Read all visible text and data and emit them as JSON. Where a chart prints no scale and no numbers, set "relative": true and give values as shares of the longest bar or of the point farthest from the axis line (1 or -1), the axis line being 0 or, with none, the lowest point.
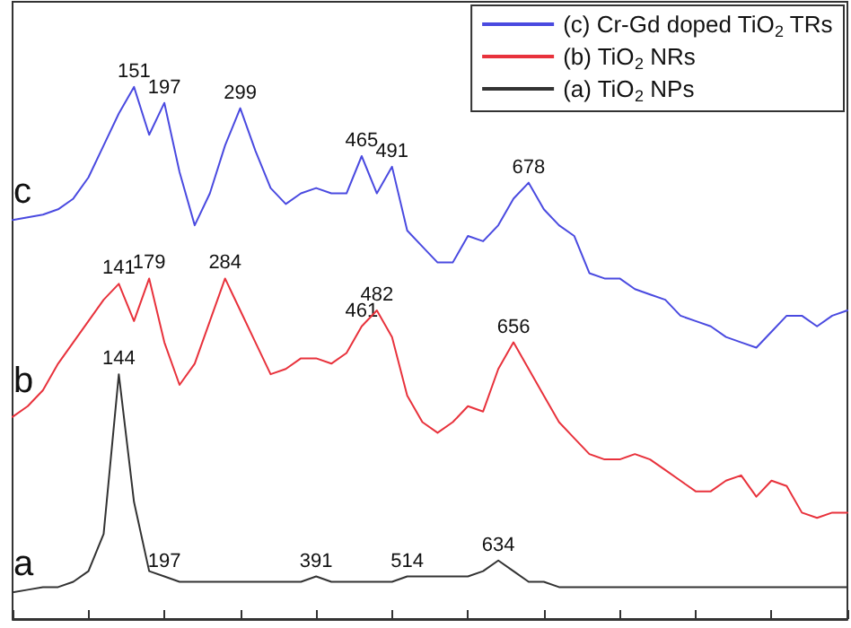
{
  "chart_data": {
    "type": "line",
    "relative": true,
    "tick_labels": false,
    "legend": "top right",
    "grid": false,
    "marker": "none",
    "line_style": "solid",
    "categories": [
      null,
      null,
      null,
      null,
      null,
      null,
      null,
      null,
      null,
      null,
      null,
      null,
      null,
      null,
      null,
      null,
      null,
      null,
      null,
      null,
      null,
      null,
      null,
      null,
      null,
      null,
      null,
      null,
      null,
      null,
      null,
      null,
      null,
      null,
      null,
      null,
      null,
      null,
      null,
      null,
      null,
      null,
      null,
      null,
      null,
      null,
      null,
      null,
      null,
      null,
      null,
      null,
      null,
      null,
      null,
      null
    ],
    "series": [
      {
        "name": "(c) Cr-Gd doped TiO$_{2}$ TRs",
        "color": "#4a4ae0",
        "values": [
          0.75,
          0.755,
          0.76,
          0.77,
          0.79,
          0.83,
          0.89,
          0.95,
          1.0,
          0.91,
          0.97,
          0.84,
          0.74,
          0.8,
          0.89,
          0.96,
          0.88,
          0.81,
          0.78,
          0.8,
          0.81,
          0.8,
          0.8,
          0.87,
          0.8,
          0.85,
          0.73,
          0.7,
          0.67,
          0.67,
          0.72,
          0.71,
          0.74,
          0.79,
          0.82,
          0.77,
          0.74,
          0.72,
          0.65,
          0.64,
          0.64,
          0.62,
          0.61,
          0.6,
          0.57,
          0.56,
          0.55,
          0.53,
          0.52,
          0.51,
          0.54,
          0.57,
          0.57,
          0.55,
          0.57,
          0.58
        ]
      },
      {
        "name": "(b) TiO$_{2}$ NRs",
        "color": "#e8323c",
        "values": [
          0.38,
          0.4,
          0.43,
          0.48,
          0.52,
          0.56,
          0.6,
          0.63,
          0.56,
          0.64,
          0.52,
          0.44,
          0.48,
          0.56,
          0.64,
          0.58,
          0.52,
          0.46,
          0.47,
          0.49,
          0.49,
          0.48,
          0.5,
          0.55,
          0.58,
          0.53,
          0.42,
          0.37,
          0.35,
          0.37,
          0.4,
          0.39,
          0.47,
          0.52,
          0.47,
          0.42,
          0.37,
          0.34,
          0.31,
          0.3,
          0.3,
          0.31,
          0.3,
          0.28,
          0.26,
          0.24,
          0.24,
          0.26,
          0.27,
          0.23,
          0.26,
          0.25,
          0.2,
          0.19,
          0.2,
          0.2
        ]
      },
      {
        "name": "(a) TiO$_{2}$ NPs",
        "color": "#333333",
        "values": [
          0.05,
          0.055,
          0.06,
          0.06,
          0.07,
          0.09,
          0.16,
          0.46,
          0.22,
          0.09,
          0.08,
          0.07,
          0.07,
          0.07,
          0.07,
          0.07,
          0.07,
          0.07,
          0.07,
          0.07,
          0.08,
          0.07,
          0.07,
          0.07,
          0.07,
          0.07,
          0.08,
          0.08,
          0.08,
          0.08,
          0.08,
          0.09,
          0.11,
          0.09,
          0.07,
          0.07,
          0.06,
          0.06,
          0.06,
          0.06,
          0.06,
          0.06,
          0.06,
          0.06,
          0.06,
          0.06,
          0.06,
          0.06,
          0.06,
          0.06,
          0.06,
          0.06,
          0.06,
          0.06,
          0.06,
          0.06
        ]
      }
    ],
    "annotations": [
      "c",
      "b",
      "a",
      {
        "text": "151",
        "y": 1.0
      },
      {
        "text": "197",
        "y": 0.97
      },
      {
        "text": "299",
        "y": 0.96
      },
      {
        "text": "465",
        "y": 0.87
      },
      {
        "text": "491",
        "y": 0.85
      },
      {
        "text": "678",
        "y": 0.82
      },
      {
        "text": "141",
        "y": 0.63
      },
      {
        "text": "179",
        "y": 0.64
      },
      {
        "text": "284",
        "y": 0.64
      },
      {
        "text": "461",
        "y": 0.55
      },
      {
        "text": "482",
        "y": 0.58
      },
      {
        "text": "656",
        "y": 0.52
      },
      {
        "text": "144",
        "y": 0.46
      },
      {
        "text": "197",
        "y": 0.08
      },
      {
        "text": "391",
        "y": 0.08
      },
      {
        "text": "514",
        "y": 0.08
      },
      {
        "text": "634",
        "y": 0.11
      }
    ]
  }
}
